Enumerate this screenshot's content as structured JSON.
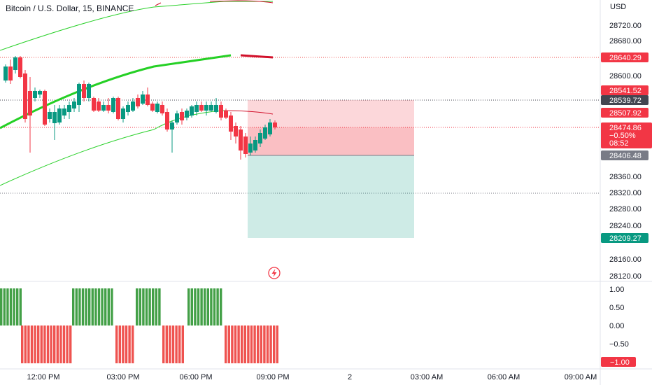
{
  "header": {
    "title": "Bitcoin / U.S. Dollar, 15, BINANCE"
  },
  "price_axis": {
    "currency": "USD",
    "ticks": [
      "28720.00",
      "28680.00",
      "28600.00",
      "28360.00",
      "28320.00",
      "28280.00",
      "28240.00",
      "28160.00",
      "28120.00"
    ]
  },
  "price_tags": [
    {
      "label": "28640.29",
      "color": "#f23645",
      "text_color": "#ffffff"
    },
    {
      "label": "28541.52",
      "color": "#f23645",
      "text_color": "#ffffff"
    },
    {
      "label": "28539.72",
      "color": "#434651",
      "text_color": "#ffffff"
    },
    {
      "label": "28507.92",
      "color": "#f23645",
      "text_color": "#ffffff"
    },
    {
      "label": "28406.48",
      "color": "#787b86",
      "text_color": "#ffffff"
    },
    {
      "label": "28209.27",
      "color": "#089981",
      "text_color": "#ffffff"
    }
  ],
  "current_price": {
    "price": "28474.86",
    "change": "−0.50%",
    "countdown": "08:52",
    "color": "#f23645"
  },
  "indicator_axis": {
    "ticks": [
      "1.00",
      "0.50",
      "0.00",
      "−0.50"
    ],
    "current_tag": {
      "label": "−1.00",
      "color": "#f23645"
    }
  },
  "time_axis": {
    "labels": [
      "12:00 PM",
      "03:00 PM",
      "06:00 PM",
      "09:00 PM",
      "2",
      "03:00 AM",
      "06:00 AM",
      "09:00 AM"
    ]
  },
  "colors": {
    "up": "#089981",
    "down": "#f23645",
    "band": "#2bd12b",
    "bar_up": "#43a047",
    "bar_down": "#ef5350",
    "grid": "#f0f3fa"
  },
  "icons": {
    "replay": "lightning-icon"
  }
}
